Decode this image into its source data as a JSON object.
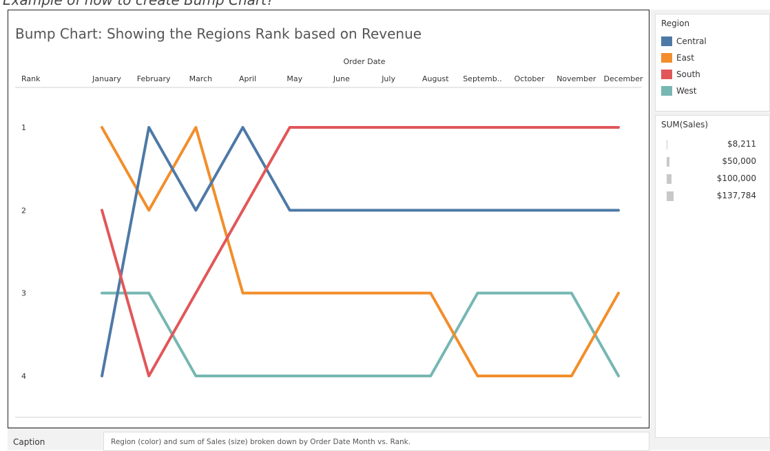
{
  "top_strip_text": "Example of how to create Bump Chart?",
  "chart_data": {
    "type": "line",
    "title": "Bump Chart: Showing the Regions Rank based on Revenue",
    "x_header": "Order Date",
    "y_header": "Rank",
    "categories": [
      "January",
      "February",
      "March",
      "April",
      "May",
      "June",
      "July",
      "August",
      "Septemb..",
      "October",
      "November",
      "December"
    ],
    "y_ticks": [
      "1",
      "2",
      "3",
      "4"
    ],
    "ylim": [
      1,
      4
    ],
    "y_reversed": true,
    "grid": false,
    "series": [
      {
        "name": "Central",
        "color": "#4e79a7",
        "ranks": [
          4,
          1,
          2,
          1,
          2,
          2,
          2,
          2,
          2,
          2,
          2,
          2
        ]
      },
      {
        "name": "East",
        "color": "#f28e2b",
        "ranks": [
          1,
          2,
          1,
          3,
          3,
          3,
          3,
          3,
          4,
          4,
          4,
          3
        ]
      },
      {
        "name": "South",
        "color": "#e15759",
        "ranks": [
          2,
          4,
          3,
          2,
          1,
          1,
          1,
          1,
          1,
          1,
          1,
          1
        ]
      },
      {
        "name": "West",
        "color": "#76b7b2",
        "ranks": [
          3,
          3,
          4,
          4,
          4,
          4,
          4,
          4,
          3,
          3,
          3,
          4
        ]
      }
    ]
  },
  "legend": {
    "region_title": "Region",
    "regions": [
      {
        "label": "Central",
        "color": "#4e79a7"
      },
      {
        "label": "East",
        "color": "#f28e2b"
      },
      {
        "label": "South",
        "color": "#e15759"
      },
      {
        "label": "West",
        "color": "#76b7b2"
      }
    ],
    "size_title": "SUM(Sales)",
    "sizes": [
      {
        "label": "$8,211",
        "value": 8211
      },
      {
        "label": "$50,000",
        "value": 50000
      },
      {
        "label": "$100,000",
        "value": 100000
      },
      {
        "label": "$137,784",
        "value": 137784
      }
    ]
  },
  "caption": {
    "label": "Caption",
    "text": "Region (color) and sum of Sales (size) broken down by Order Date Month vs. Rank."
  }
}
